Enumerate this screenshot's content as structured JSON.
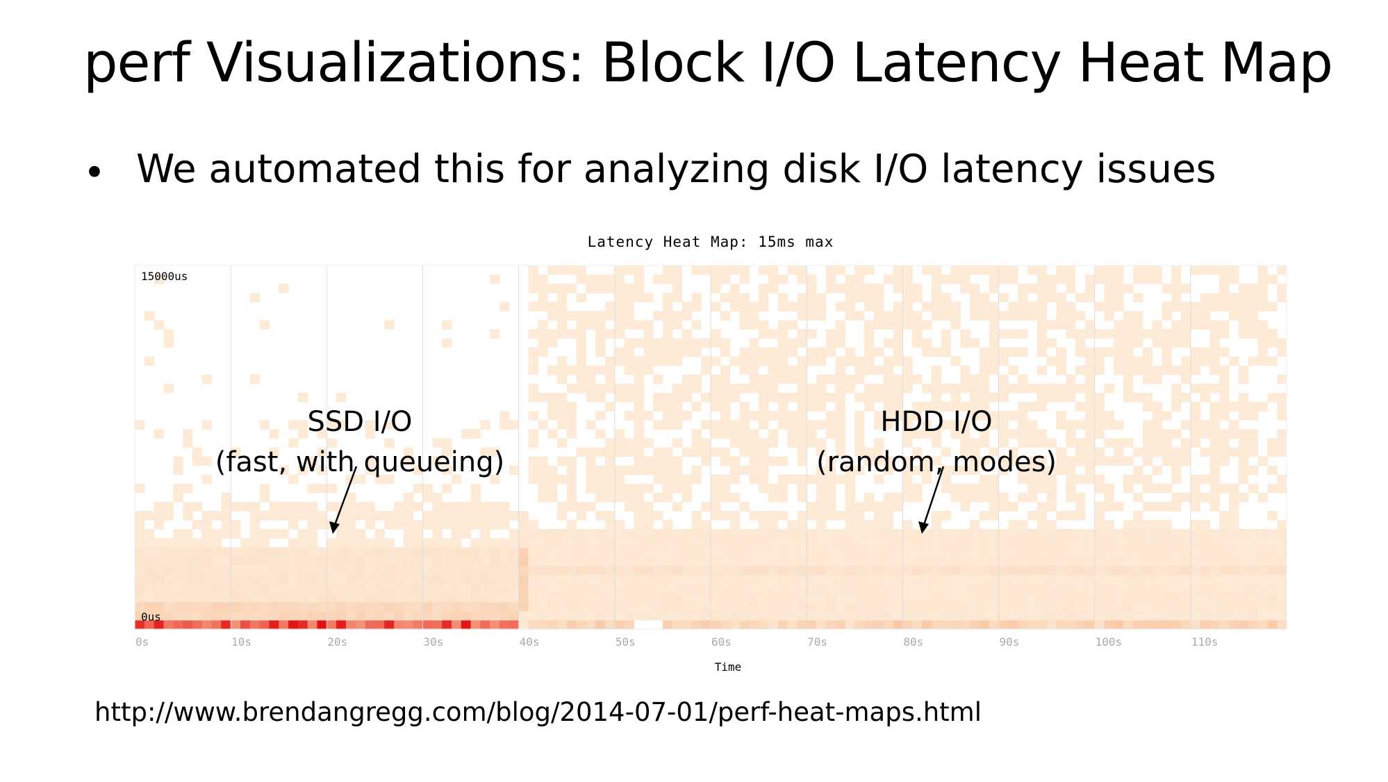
{
  "slide": {
    "title": "perf Visualizations: Block I/O Latency Heat Map",
    "bullet": "We automated this for analyzing disk I/O latency issues",
    "source_url": "http://www.brendangregg.com/blog/2014-07-01/perf-heat-maps.html"
  },
  "colors": {
    "cell_low": "#fdecd9",
    "cell_mid": "#f9c7a4",
    "cell_high": "#ef6a5a",
    "cell_max": "#e01010",
    "grid": "#dddddd",
    "axis_text": "#aaaaaa"
  },
  "chart_data": {
    "type": "heatmap",
    "title": "Latency Heat Map: 15ms max",
    "xlabel": "Time",
    "ylabel": "",
    "x_unit": "s",
    "xlim": [
      0,
      119
    ],
    "ylim_us": [
      0,
      15000
    ],
    "x_ticks": [
      "0s",
      "10s",
      "20s",
      "30s",
      "40s",
      "50s",
      "60s",
      "70s",
      "80s",
      "90s",
      "100s",
      "110s"
    ],
    "y_ticks": [
      "15000us",
      "0us"
    ],
    "grid": true,
    "legend": "none",
    "regions": [
      {
        "time_range_s": [
          0,
          40
        ],
        "description_lines": [
          "SSD I/O",
          "(fast, with queueing)"
        ],
        "pattern": "dense low-latency band at 0us, queueing tail fading up to about 5000us, sparse above"
      },
      {
        "time_range_s": [
          41,
          119
        ],
        "description_lines": [
          "HDD I/O",
          "(random, modes)"
        ],
        "pattern": "random latencies spread across full 0-15000us range with modes near 0us and around 1500us"
      }
    ],
    "annotations": [
      {
        "text_lines": [
          "SSD I/O",
          "(fast, with queueing)"
        ],
        "points_to": {
          "time_s": 20,
          "latency_us": 4000
        }
      },
      {
        "text_lines": [
          "HDD I/O",
          "(random, modes)"
        ],
        "points_to": {
          "time_s": 81,
          "latency_us": 4000
        }
      }
    ]
  }
}
